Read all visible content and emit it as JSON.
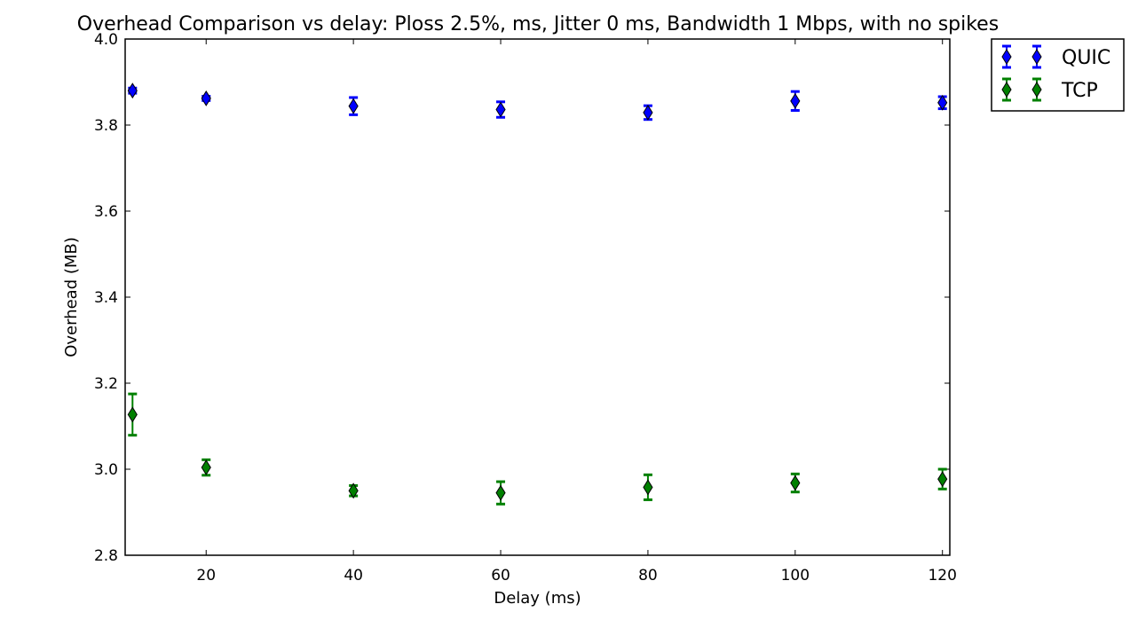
{
  "chart_data": {
    "type": "scatter",
    "title": "Overhead Comparison vs delay: Ploss 2.5%, ms, Jitter 0 ms, Bandwidth 1 Mbps, with no spikes",
    "xlabel": "Delay (ms)",
    "ylabel": "Overhead (MB)",
    "xlim": [
      9,
      121
    ],
    "ylim": [
      2.8,
      4.0
    ],
    "xticks": [
      20,
      40,
      60,
      80,
      100,
      120
    ],
    "yticks": [
      2.8,
      3.0,
      3.2,
      3.4,
      3.6,
      3.8,
      4.0
    ],
    "xtick_labels": [
      "20",
      "40",
      "60",
      "80",
      "100",
      "120"
    ],
    "ytick_labels": [
      "2.8",
      "3.0",
      "3.2",
      "3.4",
      "3.6",
      "3.8",
      "4.0"
    ],
    "grid": false,
    "legend_position": "outside-top-right",
    "x": [
      10,
      20,
      40,
      60,
      80,
      100,
      120
    ],
    "series": [
      {
        "name": "QUIC",
        "color": "#0000ff",
        "marker": "diamond",
        "values": [
          3.88,
          3.862,
          3.844,
          3.836,
          3.829,
          3.856,
          3.852
        ],
        "errors": [
          0.006,
          0.005,
          0.02,
          0.018,
          0.016,
          0.022,
          0.014
        ]
      },
      {
        "name": "TCP",
        "color": "#008000",
        "marker": "diamond",
        "values": [
          3.127,
          3.004,
          2.95,
          2.945,
          2.958,
          2.968,
          2.977
        ],
        "errors": [
          0.048,
          0.018,
          0.012,
          0.026,
          0.029,
          0.021,
          0.023
        ]
      }
    ]
  }
}
